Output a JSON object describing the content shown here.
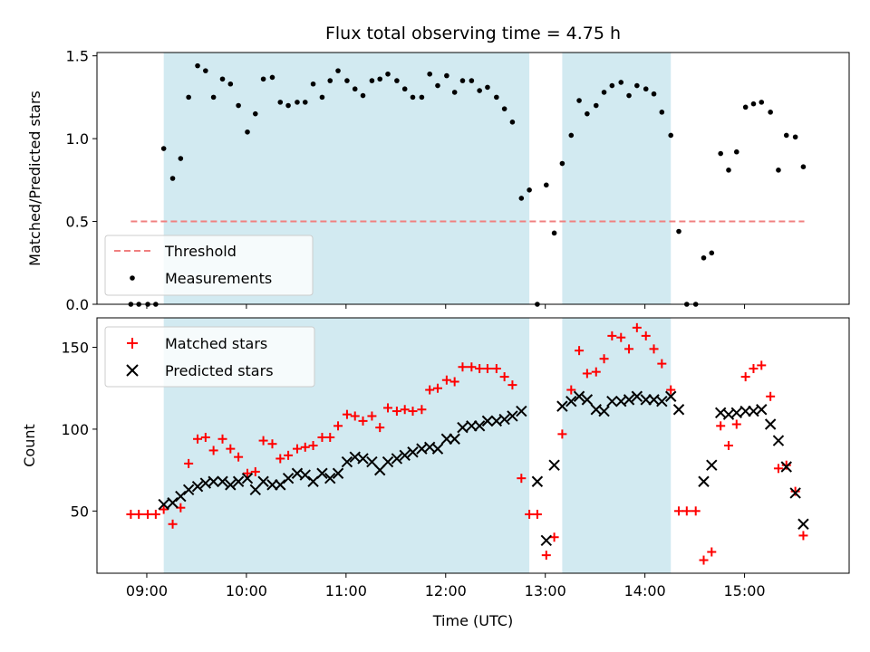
{
  "chart_data": {
    "title": "Flux total observing time = 4.75 h",
    "xlabel": "Time (UTC)",
    "x_unit": "hours UTC",
    "xlim": [
      8.5,
      16.05
    ],
    "x_ticks": [
      9,
      10,
      11,
      12,
      13,
      14,
      15
    ],
    "x_tick_labels": [
      "09:00",
      "10:00",
      "11:00",
      "12:00",
      "13:00",
      "14:00",
      "15:00"
    ],
    "shaded_intervals": [
      [
        9.17,
        12.84
      ],
      [
        13.17,
        14.26
      ]
    ],
    "shade_color": "#add8e6",
    "panels": [
      {
        "type": "scatter",
        "ylabel": "Matched/Predicted stars",
        "ylim": [
          0,
          1.52
        ],
        "y_ticks": [
          0.0,
          0.5,
          1.0,
          1.5
        ],
        "y_tick_labels": [
          "0.0",
          "0.5",
          "1.0",
          "1.5"
        ],
        "legend_position": "lower-left",
        "threshold": {
          "name": "Threshold",
          "y": 0.5,
          "x_range": [
            8.84,
            15.6
          ],
          "color": "#f08080"
        },
        "series": [
          {
            "name": "Measurements",
            "color": "#000000",
            "x": [
              8.84,
              8.92,
              9.01,
              9.09,
              9.17,
              9.26,
              9.34,
              9.42,
              9.51,
              9.59,
              9.67,
              9.76,
              9.84,
              9.92,
              10.01,
              10.09,
              10.17,
              10.26,
              10.34,
              10.42,
              10.51,
              10.59,
              10.67,
              10.76,
              10.84,
              10.92,
              11.01,
              11.09,
              11.17,
              11.26,
              11.34,
              11.42,
              11.51,
              11.59,
              11.67,
              11.76,
              11.84,
              11.92,
              12.01,
              12.09,
              12.17,
              12.26,
              12.34,
              12.42,
              12.51,
              12.59,
              12.67,
              12.76,
              12.84,
              12.92,
              13.01,
              13.09,
              13.17,
              13.26,
              13.34,
              13.42,
              13.51,
              13.59,
              13.67,
              13.76,
              13.84,
              13.92,
              14.01,
              14.09,
              14.17,
              14.26,
              14.34,
              14.42,
              14.51,
              14.59,
              14.67,
              14.76,
              14.84,
              14.92,
              15.01,
              15.09,
              15.17,
              15.26,
              15.34,
              15.42,
              15.51,
              15.59
            ],
            "y": [
              0,
              0,
              0,
              0,
              0.94,
              0.76,
              0.88,
              1.25,
              1.44,
              1.41,
              1.25,
              1.36,
              1.33,
              1.2,
              1.04,
              1.15,
              1.36,
              1.37,
              1.22,
              1.2,
              1.22,
              1.22,
              1.33,
              1.25,
              1.35,
              1.41,
              1.35,
              1.3,
              1.26,
              1.35,
              1.36,
              1.39,
              1.35,
              1.3,
              1.25,
              1.25,
              1.39,
              1.32,
              1.38,
              1.28,
              1.35,
              1.35,
              1.29,
              1.31,
              1.25,
              1.18,
              1.1,
              0.64,
              0.69,
              0,
              0.72,
              0.43,
              0.85,
              1.02,
              1.23,
              1.15,
              1.2,
              1.28,
              1.32,
              1.34,
              1.26,
              1.32,
              1.3,
              1.27,
              1.16,
              1.02,
              0.44,
              0,
              0,
              0.28,
              0.31,
              0.91,
              0.81,
              0.92,
              1.19,
              1.21,
              1.22,
              1.16,
              0.81,
              1.02,
              1.01,
              0.83
            ]
          }
        ]
      },
      {
        "type": "scatter",
        "ylabel": "Count",
        "ylim": [
          12,
          168
        ],
        "y_ticks": [
          50,
          100,
          150
        ],
        "y_tick_labels": [
          "50",
          "100",
          "150"
        ],
        "legend_position": "upper-left",
        "series": [
          {
            "name": "Matched stars",
            "marker": "plus",
            "color": "#ff0000",
            "x": [
              8.84,
              8.92,
              9.01,
              9.09,
              9.17,
              9.26,
              9.34,
              9.42,
              9.51,
              9.59,
              9.67,
              9.76,
              9.84,
              9.92,
              10.01,
              10.09,
              10.17,
              10.26,
              10.34,
              10.42,
              10.51,
              10.59,
              10.67,
              10.76,
              10.84,
              10.92,
              11.01,
              11.09,
              11.17,
              11.26,
              11.34,
              11.42,
              11.51,
              11.59,
              11.67,
              11.76,
              11.84,
              11.92,
              12.01,
              12.09,
              12.17,
              12.26,
              12.34,
              12.42,
              12.51,
              12.59,
              12.67,
              12.76,
              12.84,
              12.92,
              13.01,
              13.09,
              13.17,
              13.26,
              13.34,
              13.42,
              13.51,
              13.59,
              13.67,
              13.76,
              13.84,
              13.92,
              14.01,
              14.09,
              14.17,
              14.26,
              14.34,
              14.42,
              14.51,
              14.59,
              14.67,
              14.76,
              14.84,
              14.92,
              15.01,
              15.09,
              15.17,
              15.26,
              15.34,
              15.42,
              15.51,
              15.59
            ],
            "y": [
              48,
              48,
              48,
              48,
              51,
              42,
              52,
              79,
              94,
              95,
              87,
              94,
              88,
              83,
              73,
              74,
              93,
              91,
              82,
              84,
              88,
              89,
              90,
              95,
              95,
              102,
              109,
              108,
              105,
              108,
              101,
              113,
              111,
              112,
              111,
              112,
              124,
              125,
              130,
              129,
              138,
              138,
              137,
              137,
              137,
              132,
              127,
              70,
              48,
              48,
              23,
              34,
              97,
              124,
              148,
              134,
              135,
              143,
              157,
              156,
              149,
              162,
              157,
              149,
              140,
              124,
              50,
              50,
              50,
              20,
              25,
              102,
              90,
              103,
              132,
              137,
              139,
              120,
              76,
              78,
              62,
              35
            ]
          },
          {
            "name": "Predicted stars",
            "marker": "x",
            "color": "#000000",
            "x": [
              9.17,
              9.26,
              9.34,
              9.42,
              9.51,
              9.59,
              9.67,
              9.76,
              9.84,
              9.92,
              10.01,
              10.09,
              10.17,
              10.26,
              10.34,
              10.42,
              10.51,
              10.59,
              10.67,
              10.76,
              10.84,
              10.92,
              11.01,
              11.09,
              11.17,
              11.26,
              11.34,
              11.42,
              11.51,
              11.59,
              11.67,
              11.76,
              11.84,
              11.92,
              12.01,
              12.09,
              12.17,
              12.26,
              12.34,
              12.42,
              12.51,
              12.59,
              12.67,
              12.76,
              12.92,
              13.01,
              13.09,
              13.17,
              13.26,
              13.34,
              13.42,
              13.51,
              13.59,
              13.67,
              13.76,
              13.84,
              13.92,
              14.01,
              14.09,
              14.17,
              14.26,
              14.34,
              14.59,
              14.67,
              14.76,
              14.84,
              14.92,
              15.01,
              15.09,
              15.17,
              15.26,
              15.34,
              15.42,
              15.51,
              15.59
            ],
            "y": [
              54,
              55,
              59,
              63,
              65,
              67,
              68,
              68,
              66,
              68,
              70,
              63,
              68,
              66,
              66,
              70,
              73,
              72,
              68,
              73,
              70,
              73,
              80,
              83,
              82,
              80,
              75,
              80,
              82,
              84,
              86,
              88,
              89,
              88,
              94,
              94,
              101,
              102,
              102,
              105,
              105,
              106,
              108,
              111,
              68,
              32,
              78,
              114,
              117,
              120,
              118,
              112,
              111,
              117,
              117,
              118,
              120,
              118,
              118,
              117,
              120,
              112,
              68,
              78,
              110,
              109,
              110,
              111,
              111,
              112,
              103,
              93,
              77,
              61,
              42
            ]
          }
        ]
      }
    ]
  }
}
